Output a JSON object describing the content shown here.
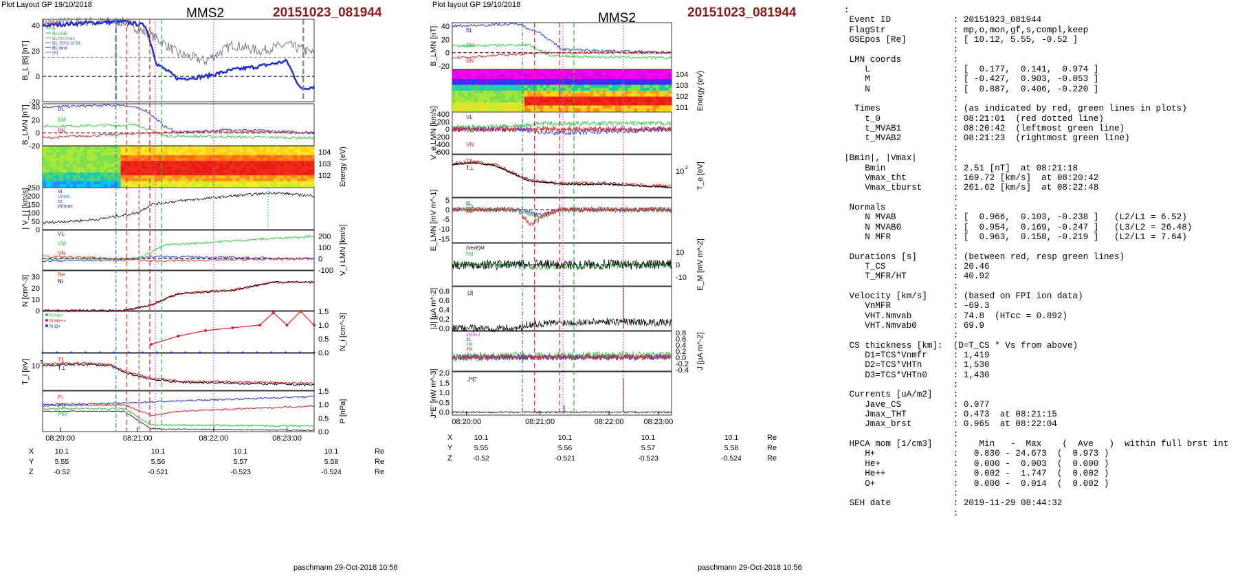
{
  "plots": [
    {
      "stamp": "Plot Layout GP 19/10/2018",
      "spacecraft": "MMS2",
      "event": "20151023_081944",
      "footer": "paschmann 29-Oct-2018 10:56",
      "time_ticks": [
        "08:20:00",
        "08:21:00",
        "08:22:00",
        "08:23:00"
      ],
      "orbit": {
        "rows": [
          {
            "label": "X",
            "values": [
              "10.1",
              "10.1",
              "10.1",
              "10.1"
            ],
            "unit": "Re"
          },
          {
            "label": "Y",
            "values": [
              "5.55",
              "5.56",
              "5.57",
              "5.58"
            ],
            "unit": "Re"
          },
          {
            "label": "Z",
            "values": [
              "-0.52",
              "-0.521",
              "-0.523",
              "-0.524"
            ],
            "unit": "Re"
          }
        ]
      }
    },
    {
      "stamp": "Plot layout GP 19/10/2018",
      "spacecraft": "MMS2",
      "event": "20151023_081944",
      "footer": "paschmann 29-Oct-2018 10:56",
      "time_ticks": [
        "08:20:00",
        "08:21:00",
        "08:22:00",
        "08:23:00"
      ],
      "orbit": {
        "rows": [
          {
            "label": "X",
            "values": [
              "10.1",
              "10.1",
              "10.1",
              "10.1"
            ],
            "unit": "Re"
          },
          {
            "label": "Y",
            "values": [
              "5.55",
              "5.56",
              "5.57",
              "5.58"
            ],
            "unit": "Re"
          },
          {
            "label": "Z",
            "values": [
              "-0.52",
              "-0.521",
              "-0.523",
              "-0.524"
            ],
            "unit": "Re"
          }
        ]
      }
    }
  ],
  "colors": {
    "red_line": "#e8312f",
    "green_line": "#2fbf3a",
    "magenta_line": "#e23fe2",
    "tealdash": "#1a8a8a",
    "blue": "#1f2ee0",
    "green": "#22c43a",
    "red": "#e52020",
    "black": "#000000",
    "gray": "#707070",
    "title_red": "#8b1a1a"
  },
  "chart_data": [
    {
      "type": "line",
      "title": "MMS2",
      "subtitle": "20151023_081944",
      "x_range": [
        "08:19:33",
        "08:23:40"
      ],
      "markers": {
        "red_dashed": [
          "08:20:42",
          "08:21:01 (dotted)",
          "08:21:23"
        ],
        "green_dashed": [
          "08:20:42",
          "08:21:23"
        ],
        "magenta_dotted": [
          "08:21:14",
          "08:22:04"
        ]
      },
      "panels": [
        {
          "name": "BL_absB",
          "ylabel": "B_L |B| [nT]",
          "ylim": [
            -20,
            45
          ],
          "ticks": [
            "40",
            "20",
            "0",
            "-20"
          ],
          "legend": [
            "Bf",
            "B",
            "BLvAB",
            "BLminmax",
            "BL 50% of BL",
            "BL brst",
            "|B|"
          ],
          "series": [
            {
              "name": "|B|",
              "color": "gray",
              "t": [
                0,
                0.15,
                0.3,
                0.42,
                0.5,
                0.6,
                0.7,
                0.8,
                0.9,
                1.0
              ],
              "v": [
                42,
                43,
                43,
                30,
                18,
                12,
                25,
                20,
                25,
                18
              ]
            },
            {
              "name": "BL brst",
              "color": "blue",
              "t": [
                0,
                0.15,
                0.3,
                0.38,
                0.42,
                0.5,
                0.6,
                0.7,
                0.8,
                0.9,
                0.95,
                1.0
              ],
              "v": [
                40,
                42,
                43,
                40,
                10,
                -2,
                0,
                5,
                8,
                12,
                -10,
                -8
              ]
            }
          ]
        },
        {
          "name": "B_LMN",
          "ylabel": "B_LMN [nT]",
          "ylim": [
            -20,
            45
          ],
          "ticks": [
            "40",
            "20",
            "0",
            "-20"
          ],
          "legend": [
            "BL",
            "BM",
            "BN"
          ],
          "series": [
            {
              "name": "BL",
              "color": "blue",
              "t": [
                0,
                0.3,
                0.38,
                0.45,
                0.5,
                0.7,
                1.0
              ],
              "v": [
                40,
                43,
                35,
                10,
                0,
                5,
                0
              ]
            },
            {
              "name": "BM",
              "color": "green",
              "t": [
                0,
                0.35,
                0.45,
                1.0
              ],
              "v": [
                10,
                12,
                -5,
                -8
              ]
            },
            {
              "name": "BN",
              "color": "red",
              "t": [
                0,
                0.4,
                0.6,
                1.0
              ],
              "v": [
                -8,
                0,
                2,
                0
              ]
            }
          ]
        },
        {
          "name": "ion_spectrogram",
          "ylabel": "Energy (eV)",
          "ticks": [
            "10^4",
            "10^3",
            "10^2"
          ]
        },
        {
          "name": "Vi_magnitude",
          "ylabel": "| V_i | [km/s]",
          "ylim": [
            0,
            250
          ],
          "ticks": [
            "250",
            "200",
            "150",
            "100",
            "50",
            "0"
          ],
          "legend": [
            "Vi",
            "Vmax",
            "cs",
            "dVmax"
          ],
          "series": [
            {
              "name": "|Vi|",
              "color": "black",
              "t": [
                0,
                0.2,
                0.35,
                0.4,
                0.5,
                0.7,
                0.85,
                1.0
              ],
              "v": [
                40,
                60,
                100,
                150,
                170,
                200,
                220,
                200
              ]
            }
          ]
        },
        {
          "name": "Vi_LMN",
          "ylabel": "V_i LMN [km/s]",
          "ylim": [
            -100,
            250
          ],
          "ticks": [
            "200",
            "100",
            "0",
            "-100"
          ],
          "legend": [
            "VL",
            "VM",
            "VN"
          ],
          "series": [
            {
              "name": "VL",
              "color": "blue",
              "t": [
                0,
                0.3,
                0.4,
                1.0
              ],
              "v": [
                -20,
                -10,
                20,
                0
              ]
            },
            {
              "name": "VM",
              "color": "green",
              "t": [
                0,
                0.35,
                0.45,
                1.0
              ],
              "v": [
                0,
                0,
                120,
                200
              ]
            },
            {
              "name": "VN",
              "color": "red",
              "t": [
                0,
                0.3,
                0.4,
                1.0
              ],
              "v": [
                20,
                0,
                -20,
                0
              ]
            }
          ]
        },
        {
          "name": "density",
          "ylabel": "N [cm^-3]",
          "ylim": [
            0,
            35
          ],
          "ticks": [
            "30",
            "20",
            "10",
            "0"
          ],
          "legend": [
            "Ne",
            "Ni"
          ],
          "series": [
            {
              "name": "Ni",
              "color": "black",
              "t": [
                0,
                0.3,
                0.4,
                0.5,
                0.7,
                0.85,
                1.0
              ],
              "v": [
                0,
                0,
                5,
                15,
                18,
                25,
                25
              ]
            }
          ]
        },
        {
          "name": "HPCA",
          "ylabel": "N_i [cm^-3]",
          "ylim": [
            0,
            1.5
          ],
          "ticks": [
            "1.5",
            "1.0",
            "0.5",
            "0.0"
          ],
          "legend": [
            "N He+",
            "N He++",
            "N O+"
          ],
          "series": [
            {
              "name": "N He++",
              "color": "red",
              "t": [
                0.4,
                0.5,
                0.6,
                0.7,
                0.8,
                0.85,
                0.9,
                0.95,
                1.0
              ],
              "v": [
                0.3,
                0.6,
                0.8,
                0.9,
                1.0,
                1.45,
                1.0,
                1.5,
                1.0
              ]
            }
          ]
        },
        {
          "name": "Ti",
          "ylabel": "T_i [eV]",
          "ticks": [
            "10^3"
          ],
          "legend": [
            "T∥",
            "T⊥"
          ]
        },
        {
          "name": "pressure",
          "ylabel": "P [nPa]",
          "ylim": [
            0,
            1.5
          ],
          "ticks": [
            "1.5",
            "1.0",
            "0.5",
            "0.0"
          ],
          "legend": [
            "Pi",
            "PB",
            "Ptot"
          ]
        }
      ]
    },
    {
      "type": "line",
      "title": "MMS2",
      "subtitle": "20151023_081944",
      "panels": [
        {
          "name": "B_LMN",
          "ylabel": "B_LMN [nT]",
          "ticks": [
            "40",
            "20",
            "0",
            "-20"
          ],
          "legend": [
            "BL",
            "BM",
            "BN"
          ]
        },
        {
          "name": "electron_spectrogram",
          "ylabel": "Energy (eV)",
          "ticks": [
            "10^4",
            "10^3",
            "10^2",
            "10^1"
          ]
        },
        {
          "name": "Ve_LMN",
          "ylabel": "V_e LMN [km/s]",
          "ticks": [
            "400",
            "200",
            "0",
            "-200",
            "-400",
            "-600"
          ],
          "legend": [
            "VL",
            "VM",
            "VN"
          ]
        },
        {
          "name": "Te",
          "ylabel": "T_e [eV]",
          "ticks": [
            "10^2"
          ],
          "legend": [
            "T∥",
            "T⊥"
          ]
        },
        {
          "name": "E_LMN",
          "ylabel": "E_LMN [mV m^-1]",
          "ticks": [
            "5",
            "0",
            "-5",
            "-10",
            "-15"
          ],
          "legend": [
            "EL",
            "EM",
            "EN"
          ]
        },
        {
          "name": "EM",
          "ylabel": "E_M [mV m^-2]",
          "ticks": [
            "10",
            "0",
            "-10"
          ],
          "legend": [
            "(VexB)M",
            "EM"
          ]
        },
        {
          "name": "J_magnitude",
          "ylabel": "|J| [µA m^-2]",
          "ticks": [
            "0.8",
            "0.6",
            "0.4",
            "0.2",
            "0.0"
          ],
          "legend": [
            "|J|"
          ]
        },
        {
          "name": "J_LMN",
          "ylabel": "J [µA m^-2]",
          "ticks": [
            "0.8",
            "0.6",
            "0.4",
            "0.2",
            "0.0",
            "-0.2",
            "-0.4"
          ],
          "legend": [
            "JMaxJ",
            "JL",
            "JM",
            "JN"
          ]
        },
        {
          "name": "JdotE",
          "ylabel": "J*E' [nW m^-3]",
          "ticks": [
            "2.0",
            "1.5",
            "1.0",
            "0.5",
            "0.0"
          ],
          "legend": [
            "J*E'"
          ]
        }
      ]
    }
  ],
  "info_lines": [
    ":",
    " Event ID            : 20151023_081944",
    " FlagStr             : mp,o,mon,gf,s,compl,keep",
    " GSEpos [Re]         : [ 10.12, 5.55, -0.52 ]",
    "                     :",
    " LMN coords          :",
    "    L                : [  0.177,  0.141,  0.974 ]",
    "    M                : [ -0.427,  0.903, -0.053 ]",
    "    N                : [  0.887,  0.406, -0.220 ]",
    "                     :",
    "  Times              : (as indicated by red, green lines in plots)",
    "    t_0              : 08:21:01  (red dotted line)",
    "    t_MVAB1          : 08:20:42  (leftmost green line)",
    "    t_MVAB2          : 08:21:23  (rightmost green line)",
    "                     :",
    "|Bmin|, |Vmax|       :",
    "    Bmin             : 2.51 [nT]  at 08:21:18",
    "    Vmax_tht         : 169.72 [km/s]  at 08:20:42",
    "    Vmax_tburst      : 261.62 [km/s]  at 08:22:48",
    "                     :",
    " Normals             :",
    "    N MVAB           : [  0.966,  0.103, -0.238 ]   (L2/L1 = 6.52)",
    "    N MVAB0          : [  0.954,  0.169, -0.247 ]   (L3/L2 = 26.48)",
    "    N MFR            : [  0.963,  0.158, -0.219 ]   (L2/L1 = 7.64)",
    "                     :",
    " Durations [s]       : (between red, resp green lines)",
    "    T_CS             : 20.46",
    "    T_MFR/HT         : 40.92",
    "                     :",
    " Velocity [km/s]     : (based on FPI ion data)",
    "    VnMFR            : -69.3",
    "    VHT.Nmvab        : 74.8  (HTcc = 0.892)",
    "    VHT.Nmvab0       : 69.9",
    "                     :",
    " CS thickness [km]:  (D=T_CS * Vs from above)",
    "    D1=TCS*Vnmfr     : 1,419",
    "    D2=TCS*VHTn      : 1,530",
    "    D3=TCS*VHTn0     : 1,430",
    "                     :",
    " Currents [uA/m2]    :",
    "    Jave_CS          : 0.077",
    "    Jmax_THT         : 0.473  at 08:21:15",
    "    Jmax_brst        : 0.965  at 08:22:04",
    "                     :",
    " HPCA mom [1/cm3]    :    Min   -  Max    (  Ave   )  within full brst int",
    "    H+               :   0.830 - 24.673  (  0.973 )",
    "    He+              :   0.000 -  0.003  (  0.000 )",
    "    He++             :   0.002 -  1.747  (  0.002 )",
    "    O+               :   0.000 -  0.014  (  0.002 )",
    "                     :",
    " SEH date            : 2019-11-29 08:44:32",
    "                     :"
  ]
}
